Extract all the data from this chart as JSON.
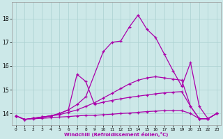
{
  "xlabel": "Windchill (Refroidissement éolien,°C)",
  "bg_color": "#cce8e8",
  "grid_color": "#aad0d0",
  "line_color": "#aa00aa",
  "xlim": [
    -0.5,
    23.5
  ],
  "ylim": [
    13.5,
    18.7
  ],
  "yticks": [
    14,
    15,
    16,
    17,
    18
  ],
  "xticks": [
    0,
    1,
    2,
    3,
    4,
    5,
    6,
    7,
    8,
    9,
    10,
    11,
    12,
    13,
    14,
    15,
    16,
    17,
    18,
    19,
    20,
    21,
    22,
    23
  ],
  "line1_x": [
    0,
    1,
    2,
    3,
    4,
    5,
    6,
    7,
    8,
    9,
    10,
    11,
    12,
    13,
    14,
    15,
    16,
    17,
    18,
    19,
    20,
    21,
    22,
    23
  ],
  "line1_y": [
    13.9,
    13.75,
    13.78,
    13.8,
    13.82,
    13.85,
    13.87,
    13.9,
    13.92,
    13.92,
    13.95,
    13.97,
    14.0,
    14.02,
    14.05,
    14.08,
    14.1,
    14.12,
    14.12,
    14.12,
    14.0,
    13.78,
    13.78,
    14.0
  ],
  "line2_x": [
    0,
    1,
    2,
    3,
    4,
    5,
    6,
    7,
    8,
    9,
    10,
    11,
    12,
    13,
    14,
    15,
    16,
    17,
    18,
    19,
    20,
    21,
    22,
    23
  ],
  "line2_y": [
    13.9,
    13.75,
    13.8,
    13.85,
    13.9,
    13.95,
    14.05,
    14.15,
    14.3,
    14.45,
    14.65,
    14.85,
    15.05,
    15.25,
    15.4,
    15.5,
    15.55,
    15.5,
    15.45,
    15.4,
    14.3,
    13.78,
    13.78,
    14.0
  ],
  "line3_x": [
    0,
    1,
    2,
    3,
    4,
    5,
    6,
    7,
    8,
    9,
    10,
    11,
    12,
    13,
    14,
    15,
    16,
    17,
    18,
    19,
    20,
    21,
    22,
    23
  ],
  "line3_y": [
    13.9,
    13.75,
    13.8,
    13.85,
    13.9,
    14.0,
    14.15,
    15.65,
    15.35,
    14.38,
    14.48,
    14.55,
    14.62,
    14.68,
    14.73,
    14.78,
    14.83,
    14.87,
    14.9,
    14.92,
    14.3,
    13.78,
    13.78,
    14.0
  ],
  "line4_x": [
    0,
    1,
    2,
    3,
    4,
    5,
    6,
    7,
    8,
    10,
    11,
    12,
    13,
    14,
    15,
    16,
    17,
    18,
    19,
    20,
    21,
    22,
    23
  ],
  "line4_y": [
    13.9,
    13.75,
    13.8,
    13.85,
    13.9,
    14.0,
    14.15,
    14.38,
    14.7,
    16.6,
    17.0,
    17.05,
    17.65,
    18.15,
    17.55,
    17.2,
    16.5,
    15.8,
    15.15,
    16.15,
    14.3,
    13.78,
    14.0
  ]
}
